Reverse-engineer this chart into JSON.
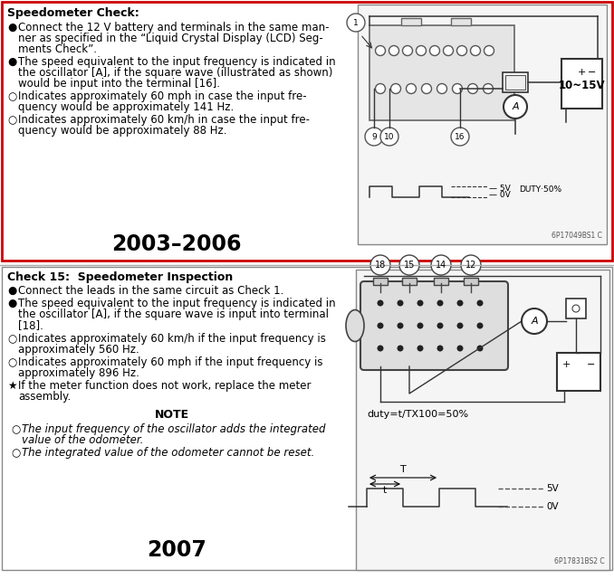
{
  "fig_w": 6.78,
  "fig_h": 6.4,
  "dpi": 100,
  "top_border_color": "#cc0000",
  "bot_border_color": "#aaaaaa",
  "bg": "#ffffff",
  "top_title": "Speedometer Check:",
  "top_year": "2003–2006",
  "bot_title": "Check 15:  Speedometer Inspection",
  "bot_year": "2007",
  "note_title": "NOTE",
  "diag1_code": "6P17049BS1 C",
  "diag2_code": "6P17831BS2 C",
  "duty1": "DUTY·50%",
  "duty2": "duty=t/TX100=50%"
}
